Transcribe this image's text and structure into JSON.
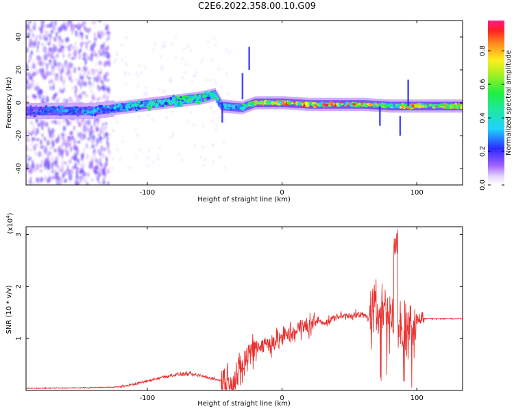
{
  "title": "C2E6.2022.358.00.10.G09",
  "colors": {
    "snr_line": "#e8302e",
    "spectrum_low": "#8a3cff",
    "spectrum_mid": "#1fd2ff",
    "spectrum_high": "#ff2020",
    "axis": "#000000"
  },
  "chart_data": [
    {
      "type": "heatmap",
      "xlabel": "Height of straight line (km)",
      "ylabel": "Frequency (Hz)",
      "xlim": [
        -190,
        134
      ],
      "ylim": [
        -50,
        50
      ],
      "x_ticks": [
        -100,
        0,
        100
      ],
      "y_ticks": [
        40,
        20,
        0,
        -20,
        -40
      ],
      "colorbar": {
        "label": "Normalized spectral amplitude",
        "range": [
          0.0,
          0.98
        ],
        "ticks": [
          "0.0",
          "0.2",
          "0.4",
          "0.6",
          "0.8"
        ],
        "tick_values": [
          0.0,
          0.2,
          0.4,
          0.6,
          0.8
        ]
      },
      "ridge": [
        {
          "x": -190,
          "freq": -5,
          "amp": 0.25
        },
        {
          "x": -140,
          "freq": -5,
          "amp": 0.3
        },
        {
          "x": -120,
          "freq": -3,
          "amp": 0.35
        },
        {
          "x": -100,
          "freq": -1,
          "amp": 0.45
        },
        {
          "x": -80,
          "freq": 1,
          "amp": 0.5
        },
        {
          "x": -60,
          "freq": 3,
          "amp": 0.5
        },
        {
          "x": -50,
          "freq": 5,
          "amp": 0.45
        },
        {
          "x": -45,
          "freq": -2,
          "amp": 0.35
        },
        {
          "x": -30,
          "freq": -3,
          "amp": 0.4
        },
        {
          "x": -20,
          "freq": 0,
          "amp": 0.75
        },
        {
          "x": 0,
          "freq": 0,
          "amp": 0.8
        },
        {
          "x": 20,
          "freq": -1,
          "amp": 0.85
        },
        {
          "x": 40,
          "freq": -1,
          "amp": 0.8
        },
        {
          "x": 60,
          "freq": -1,
          "amp": 0.9
        },
        {
          "x": 80,
          "freq": -2,
          "amp": 0.6
        },
        {
          "x": 100,
          "freq": -2,
          "amp": 0.85
        },
        {
          "x": 134,
          "freq": -2,
          "amp": 0.7
        }
      ]
    },
    {
      "type": "line",
      "xlabel": "Height of straight line (km)",
      "ylabel": "SNR (10 * v/v)",
      "y_multiplier": "(x10",
      "y_multiplier_exp": "4",
      "y_multiplier_close": ")",
      "xlim": [
        -190,
        134
      ],
      "ylim": [
        0,
        3.15
      ],
      "x_ticks": [
        -100,
        0,
        100
      ],
      "y_ticks": [
        1,
        2,
        3
      ],
      "series": [
        {
          "x": [
            -190,
            -150,
            -130,
            -120,
            -110,
            -100,
            -90,
            -80,
            -70,
            -60,
            -50,
            -40,
            -35,
            -30,
            -25,
            -20,
            -10,
            0,
            10,
            20,
            27,
            33,
            40,
            50,
            60,
            65,
            70,
            75,
            80,
            85,
            90,
            95,
            100,
            105,
            110,
            120,
            134
          ],
          "values": [
            0.04,
            0.05,
            0.06,
            0.07,
            0.12,
            0.18,
            0.25,
            0.3,
            0.32,
            0.28,
            0.22,
            0.15,
            0.2,
            0.4,
            0.7,
            0.85,
            0.9,
            1.0,
            1.15,
            1.25,
            1.35,
            1.3,
            1.42,
            1.45,
            1.45,
            1.4,
            1.5,
            1.6,
            1.5,
            1.3,
            1.2,
            1.3,
            1.35,
            1.38,
            1.38,
            1.38,
            1.38
          ]
        }
      ]
    }
  ]
}
